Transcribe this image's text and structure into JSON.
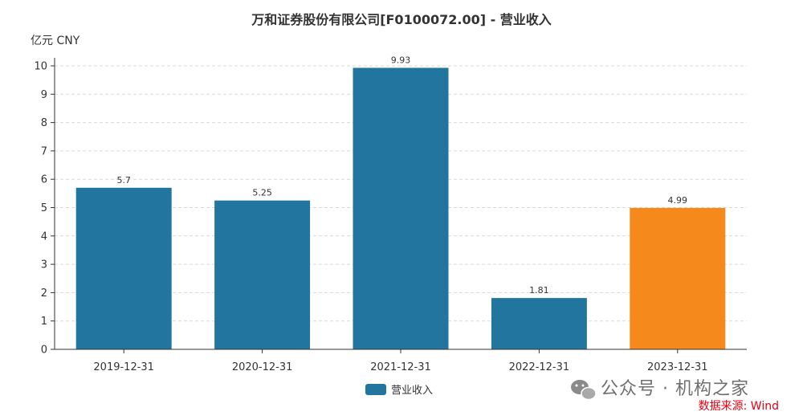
{
  "chart_data": {
    "type": "bar",
    "title": "万和证券股份有限公司[F0100072.00] - 营业收入",
    "unit_label": "亿元  CNY",
    "categories": [
      "2019-12-31",
      "2020-12-31",
      "2021-12-31",
      "2022-12-31",
      "2023-12-31"
    ],
    "series": [
      {
        "name": "营业收入",
        "values": [
          5.7,
          5.25,
          9.93,
          1.81,
          4.99
        ]
      }
    ],
    "data_labels": [
      "5.7",
      "5.25",
      "9.93",
      "1.81",
      "4.99"
    ],
    "bar_colors": [
      "#21759f",
      "#21759f",
      "#21759f",
      "#21759f",
      "#f5891b"
    ],
    "ylim": [
      0,
      10
    ],
    "yticks": [
      0,
      1,
      2,
      3,
      4,
      5,
      6,
      7,
      8,
      9,
      10
    ],
    "grid": true,
    "legend_position": "bottom-center"
  },
  "colors": {
    "primary": "#21759f",
    "highlight": "#f5891b",
    "source": "#e60012"
  },
  "watermark": "公众号 · 机构之家",
  "source_note": "数据来源: Wind"
}
